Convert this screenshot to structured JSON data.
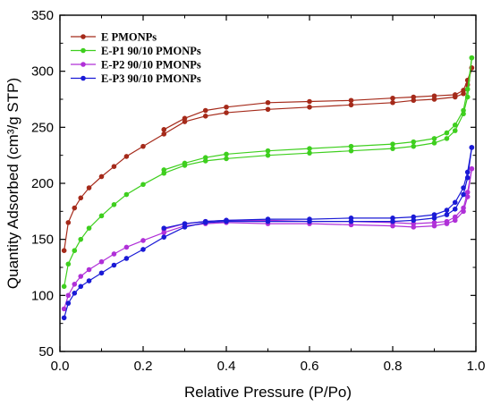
{
  "chart_data": {
    "type": "line",
    "title": "",
    "xlabel": "Relative Pressure (P/Po)",
    "ylabel": "Quantity Adsorbed (cm³/g STP)",
    "xlim": [
      0.0,
      1.0
    ],
    "ylim": [
      50,
      350
    ],
    "xticks": [
      0.0,
      0.2,
      0.4,
      0.6,
      0.8,
      1.0
    ],
    "xtick_labels": [
      "0.0",
      "0.2",
      "0.4",
      "0.6",
      "0.8",
      "1.0"
    ],
    "yticks": [
      50,
      100,
      150,
      200,
      250,
      300,
      350
    ],
    "ytick_labels": [
      "50",
      "100",
      "150",
      "200",
      "250",
      "300",
      "350"
    ],
    "grid": false,
    "legend_position": "top-left",
    "series": [
      {
        "name": "E PMONPs",
        "color": "#a52a1a",
        "adsorption": [
          [
            0.01,
            140
          ],
          [
            0.02,
            165
          ],
          [
            0.035,
            178
          ],
          [
            0.05,
            187
          ],
          [
            0.07,
            196
          ],
          [
            0.1,
            206
          ],
          [
            0.13,
            215
          ],
          [
            0.16,
            224
          ],
          [
            0.2,
            233
          ],
          [
            0.25,
            244
          ],
          [
            0.3,
            255
          ],
          [
            0.35,
            260
          ],
          [
            0.4,
            263
          ],
          [
            0.5,
            266
          ],
          [
            0.6,
            268
          ],
          [
            0.7,
            270
          ],
          [
            0.8,
            272
          ],
          [
            0.85,
            274
          ],
          [
            0.9,
            275
          ],
          [
            0.95,
            277
          ],
          [
            0.97,
            280
          ],
          [
            0.98,
            288
          ],
          [
            0.99,
            303
          ]
        ],
        "desorption": [
          [
            0.99,
            303
          ],
          [
            0.98,
            292
          ],
          [
            0.97,
            283
          ],
          [
            0.95,
            279
          ],
          [
            0.9,
            278
          ],
          [
            0.85,
            277
          ],
          [
            0.8,
            276
          ],
          [
            0.7,
            274
          ],
          [
            0.6,
            273
          ],
          [
            0.5,
            272
          ],
          [
            0.4,
            268
          ],
          [
            0.35,
            265
          ],
          [
            0.3,
            258
          ],
          [
            0.25,
            248
          ]
        ]
      },
      {
        "name": "E-P1 90/10 PMONPs",
        "color": "#3ecf1e",
        "adsorption": [
          [
            0.01,
            108
          ],
          [
            0.02,
            128
          ],
          [
            0.035,
            140
          ],
          [
            0.05,
            150
          ],
          [
            0.07,
            160
          ],
          [
            0.1,
            171
          ],
          [
            0.13,
            181
          ],
          [
            0.16,
            190
          ],
          [
            0.2,
            199
          ],
          [
            0.25,
            209
          ],
          [
            0.3,
            216
          ],
          [
            0.35,
            220
          ],
          [
            0.4,
            222
          ],
          [
            0.5,
            225
          ],
          [
            0.6,
            227
          ],
          [
            0.7,
            229
          ],
          [
            0.8,
            231
          ],
          [
            0.85,
            233
          ],
          [
            0.9,
            236
          ],
          [
            0.93,
            240
          ],
          [
            0.95,
            247
          ],
          [
            0.97,
            262
          ],
          [
            0.98,
            277
          ],
          [
            0.99,
            312
          ]
        ],
        "desorption": [
          [
            0.99,
            312
          ],
          [
            0.98,
            284
          ],
          [
            0.97,
            265
          ],
          [
            0.95,
            252
          ],
          [
            0.93,
            245
          ],
          [
            0.9,
            240
          ],
          [
            0.85,
            237
          ],
          [
            0.8,
            235
          ],
          [
            0.7,
            233
          ],
          [
            0.6,
            231
          ],
          [
            0.5,
            229
          ],
          [
            0.4,
            226
          ],
          [
            0.35,
            223
          ],
          [
            0.3,
            218
          ],
          [
            0.25,
            212
          ]
        ]
      },
      {
        "name": "E-P2 90/10 PMONPs",
        "color": "#b030d8",
        "adsorption": [
          [
            0.01,
            88
          ],
          [
            0.02,
            100
          ],
          [
            0.035,
            110
          ],
          [
            0.05,
            117
          ],
          [
            0.07,
            123
          ],
          [
            0.1,
            130
          ],
          [
            0.13,
            137
          ],
          [
            0.16,
            143
          ],
          [
            0.2,
            149
          ],
          [
            0.25,
            156
          ],
          [
            0.3,
            162
          ],
          [
            0.35,
            164
          ],
          [
            0.4,
            165
          ],
          [
            0.5,
            164
          ],
          [
            0.6,
            164
          ],
          [
            0.7,
            163
          ],
          [
            0.8,
            162
          ],
          [
            0.85,
            161
          ],
          [
            0.9,
            162
          ],
          [
            0.93,
            164
          ],
          [
            0.95,
            167
          ],
          [
            0.97,
            175
          ],
          [
            0.98,
            188
          ],
          [
            0.99,
            213
          ]
        ],
        "desorption": [
          [
            0.99,
            213
          ],
          [
            0.98,
            192
          ],
          [
            0.97,
            178
          ],
          [
            0.95,
            170
          ],
          [
            0.93,
            166
          ],
          [
            0.9,
            165
          ],
          [
            0.85,
            164
          ],
          [
            0.8,
            165
          ],
          [
            0.7,
            166
          ],
          [
            0.6,
            166
          ],
          [
            0.5,
            167
          ],
          [
            0.4,
            167
          ],
          [
            0.35,
            166
          ],
          [
            0.3,
            164
          ],
          [
            0.25,
            159
          ]
        ]
      },
      {
        "name": "E-P3 90/10 PMONPs",
        "color": "#1a1ad6",
        "adsorption": [
          [
            0.01,
            80
          ],
          [
            0.02,
            93
          ],
          [
            0.035,
            102
          ],
          [
            0.05,
            108
          ],
          [
            0.07,
            113
          ],
          [
            0.1,
            120
          ],
          [
            0.13,
            127
          ],
          [
            0.16,
            133
          ],
          [
            0.2,
            141
          ],
          [
            0.25,
            152
          ],
          [
            0.3,
            161
          ],
          [
            0.35,
            165
          ],
          [
            0.4,
            166
          ],
          [
            0.5,
            166
          ],
          [
            0.6,
            166
          ],
          [
            0.7,
            166
          ],
          [
            0.8,
            166
          ],
          [
            0.85,
            167
          ],
          [
            0.9,
            169
          ],
          [
            0.93,
            172
          ],
          [
            0.95,
            177
          ],
          [
            0.97,
            190
          ],
          [
            0.98,
            205
          ],
          [
            0.99,
            232
          ]
        ],
        "desorption": [
          [
            0.99,
            232
          ],
          [
            0.98,
            210
          ],
          [
            0.97,
            196
          ],
          [
            0.95,
            183
          ],
          [
            0.93,
            176
          ],
          [
            0.9,
            172
          ],
          [
            0.85,
            170
          ],
          [
            0.8,
            169
          ],
          [
            0.7,
            169
          ],
          [
            0.6,
            168
          ],
          [
            0.5,
            168
          ],
          [
            0.4,
            167
          ],
          [
            0.35,
            166
          ],
          [
            0.3,
            164
          ],
          [
            0.25,
            160
          ]
        ]
      }
    ]
  }
}
